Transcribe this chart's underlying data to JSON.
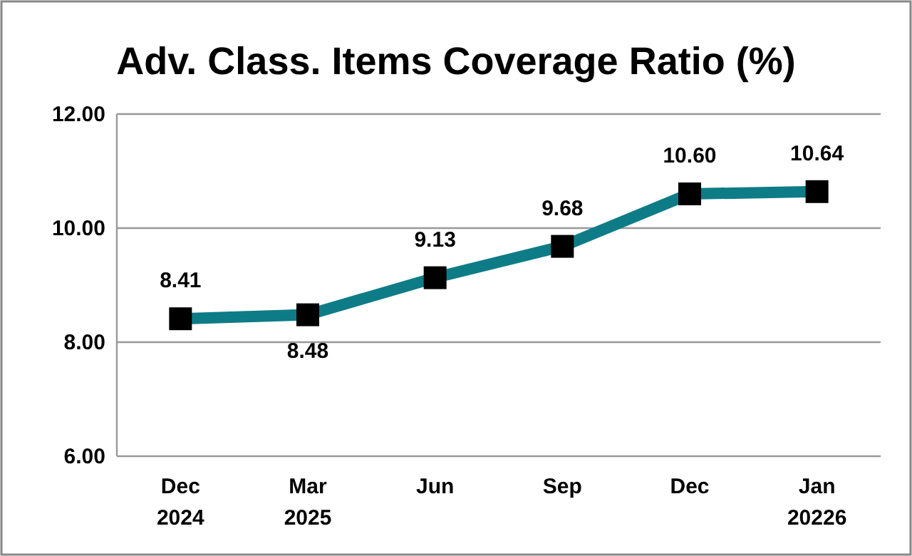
{
  "chart_data": {
    "type": "line",
    "title": "Adv. Class. Items Coverage Ratio (%)",
    "categories": [
      "Dec\n2024",
      "Mar\n2025",
      "Jun",
      "Sep",
      "Dec",
      "Jan\n20226"
    ],
    "series": [
      {
        "color": "#0e7c86",
        "values": [
          8.41,
          8.48,
          9.13,
          9.68,
          10.6,
          10.64
        ],
        "value_labels": [
          "8.41",
          "8.48",
          "9.13",
          "9.68",
          "10.60",
          "10.64"
        ]
      }
    ],
    "ylim": [
      6,
      12
    ],
    "yticks": [
      {
        "value": 6,
        "label": "6.00"
      },
      {
        "value": 8,
        "label": "8.00"
      },
      {
        "value": 10,
        "label": "10.00"
      },
      {
        "value": 12,
        "label": "12.00"
      }
    ],
    "grid": "y",
    "marker": "square",
    "line_style": "solid"
  }
}
